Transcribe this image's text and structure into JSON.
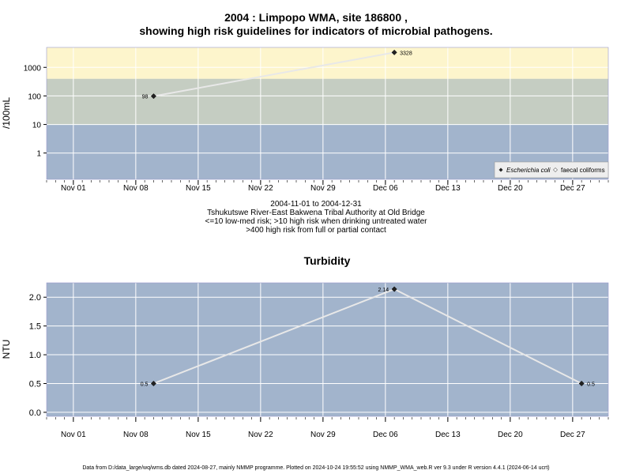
{
  "title": {
    "line1": "2004 : Limpopo WMA, site 186800 ,",
    "line2": "showing high risk guidelines for indicators of microbial pathogens."
  },
  "info": {
    "line1": "2004-11-01 to 2004-12-31",
    "line2": "Tshukutswe River-East Bakwena Tribal Authority at Old Bridge",
    "line3": "<=10 low-med risk; >10 high risk when drinking untreated water",
    "line4": ">400 high risk from full or partial contact"
  },
  "footer": "Data from D:/data_large/wq/wms.db dated 2024-08-27, mainly NMMP programme. Plotted on 2024-10-24 19:55:52 using NMMP_WMA_web.R ver 9.3 under R version 4.4.1 (2024-06-14 ucrt)",
  "colors": {
    "high_risk_band": "#fdf5cc",
    "mid_band": "#c5cdc2",
    "low_band": "#a2b4cc",
    "panel_bg": "#a2b4cc",
    "grid": "#ffffff",
    "line": "#e8e8e8",
    "point": "#222222"
  },
  "chart_data": [
    {
      "type": "line",
      "title": "",
      "xlabel": "",
      "ylabel": "/100mL",
      "yscale": "log",
      "ylim": [
        0.12,
        5000
      ],
      "yticks": [
        1,
        10,
        100,
        1000
      ],
      "ytick_labels": [
        "1",
        "10",
        "100",
        "1000"
      ],
      "xlim": [
        "2004-10-29",
        "2004-12-31"
      ],
      "xticks": [
        "2004-11-01",
        "2004-11-08",
        "2004-11-15",
        "2004-11-22",
        "2004-11-29",
        "2004-12-06",
        "2004-12-13",
        "2004-12-20",
        "2004-12-27"
      ],
      "xtick_labels": [
        "Nov 01",
        "Nov 08",
        "Nov 15",
        "Nov 22",
        "Nov 29",
        "Dec 06",
        "Dec 13",
        "Dec 20",
        "Dec 27"
      ],
      "bands": [
        {
          "from": 0.12,
          "to": 10,
          "color": "#a2b4cc"
        },
        {
          "from": 10,
          "to": 400,
          "color": "#c5cdc2"
        },
        {
          "from": 400,
          "to": 5000,
          "color": "#fdf5cc"
        }
      ],
      "series": [
        {
          "name": "Escherichia coli",
          "marker": "filled-diamond",
          "x": [
            "2004-11-10",
            "2004-12-07"
          ],
          "y": [
            98,
            3328
          ],
          "labels": [
            "98",
            "3328"
          ]
        }
      ],
      "legend": {
        "position": "bottom-right",
        "entries": [
          "Escherichia coli",
          "faecal coliforms"
        ]
      },
      "grid": true
    },
    {
      "type": "line",
      "title": "Turbidity",
      "xlabel": "",
      "ylabel": "NTU",
      "ylim": [
        -0.07,
        2.25
      ],
      "yticks": [
        0,
        0.5,
        1,
        1.5,
        2
      ],
      "ytick_labels": [
        "0.0",
        "0.5",
        "1.0",
        "1.5",
        "2.0"
      ],
      "xlim": [
        "2004-10-29",
        "2004-12-31"
      ],
      "xticks": [
        "2004-11-01",
        "2004-11-08",
        "2004-11-15",
        "2004-11-22",
        "2004-11-29",
        "2004-12-06",
        "2004-12-13",
        "2004-12-20",
        "2004-12-27"
      ],
      "xtick_labels": [
        "Nov 01",
        "Nov 08",
        "Nov 15",
        "Nov 22",
        "Nov 29",
        "Dec 06",
        "Dec 13",
        "Dec 20",
        "Dec 27"
      ],
      "series": [
        {
          "name": "",
          "marker": "filled-diamond",
          "x": [
            "2004-11-10",
            "2004-12-07",
            "2004-12-28"
          ],
          "y": [
            0.5,
            2.14,
            0.5
          ],
          "labels": [
            "0.5",
            "2.14",
            "0.5"
          ]
        }
      ],
      "grid": true
    }
  ]
}
